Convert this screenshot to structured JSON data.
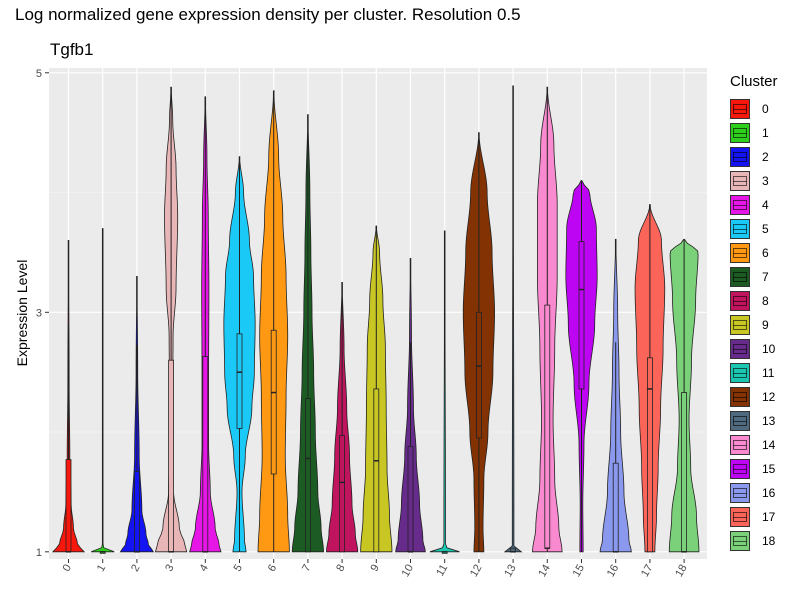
{
  "title": "Log normalized gene expression density per cluster. Resolution 0.5",
  "chart_data": {
    "type": "violin",
    "title": "Tgfb1",
    "xlabel": "",
    "ylabel": "Expression Level",
    "ylim": [
      0.94,
      5.04
    ],
    "yticks": [
      1,
      3,
      5
    ],
    "ytick_labels": [
      "1",
      "3",
      "5"
    ],
    "grid": true,
    "legend_title": "Cluster",
    "legend_position": "right",
    "categories": [
      "0",
      "1",
      "2",
      "3",
      "4",
      "5",
      "6",
      "7",
      "8",
      "9",
      "10",
      "11",
      "12",
      "13",
      "14",
      "15",
      "16",
      "17",
      "18"
    ],
    "colors": [
      "#F8170D",
      "#2DCF1C",
      "#1414F3",
      "#E8B6B7",
      "#E617E6",
      "#1BC9F7",
      "#FF9914",
      "#1C5C24",
      "#C1145E",
      "#C8C622",
      "#672B8C",
      "#1BC7B0",
      "#833303",
      "#4F6A7F",
      "#F98ACF",
      "#BE05F3",
      "#8A98EE",
      "#FB6559",
      "#7BD179"
    ],
    "series": [
      {
        "cluster": "0",
        "min": 1,
        "max": 3.6,
        "q1": 1,
        "median": 1,
        "q3": 1.77,
        "whisker_hi": 2.9,
        "profile": [
          [
            1,
            0.95
          ],
          [
            1.06,
            0.55
          ],
          [
            1.2,
            0.3
          ],
          [
            1.4,
            0.16
          ],
          [
            1.8,
            0.08
          ],
          [
            2.4,
            0.04
          ],
          [
            3.6,
            0.01
          ]
        ]
      },
      {
        "cluster": "1",
        "min": 1,
        "max": 3.7,
        "q1": 1,
        "median": 1,
        "q3": 1,
        "whisker_hi": 1,
        "profile": [
          [
            1,
            0.7
          ],
          [
            1.02,
            0.2
          ],
          [
            1.04,
            0.02
          ],
          [
            3.7,
            0.01
          ]
        ]
      },
      {
        "cluster": "2",
        "min": 1,
        "max": 3.3,
        "q1": 1,
        "median": 1,
        "q3": 1.67,
        "whisker_hi": 2.73,
        "profile": [
          [
            1,
            1
          ],
          [
            1.06,
            0.7
          ],
          [
            1.15,
            0.55
          ],
          [
            1.35,
            0.3
          ],
          [
            1.8,
            0.14
          ],
          [
            2.5,
            0.05
          ],
          [
            3.3,
            0.01
          ]
        ]
      },
      {
        "cluster": "3",
        "min": 1,
        "max": 4.88,
        "q1": 1,
        "median": 1,
        "q3": 2.6,
        "whisker_hi": 4.88,
        "profile": [
          [
            1,
            0.95
          ],
          [
            1.05,
            0.85
          ],
          [
            1.2,
            0.5
          ],
          [
            1.5,
            0.15
          ],
          [
            2.0,
            0.06
          ],
          [
            2.8,
            0.12
          ],
          [
            3.2,
            0.3
          ],
          [
            3.8,
            0.4
          ],
          [
            4.2,
            0.3
          ],
          [
            4.6,
            0.1
          ],
          [
            4.88,
            0.01
          ]
        ]
      },
      {
        "cluster": "4",
        "min": 1,
        "max": 4.8,
        "q1": 1,
        "median": 1,
        "q3": 2.63,
        "whisker_hi": 4.8,
        "profile": [
          [
            1,
            0.95
          ],
          [
            1.05,
            0.85
          ],
          [
            1.2,
            0.6
          ],
          [
            1.5,
            0.3
          ],
          [
            1.9,
            0.2
          ],
          [
            2.5,
            0.2
          ],
          [
            3.2,
            0.22
          ],
          [
            3.8,
            0.18
          ],
          [
            4.3,
            0.1
          ],
          [
            4.8,
            0.01
          ]
        ]
      },
      {
        "cluster": "5",
        "min": 1,
        "max": 4.3,
        "q1": 2.03,
        "median": 2.5,
        "q3": 2.82,
        "whisker_hi": 4.3,
        "profile": [
          [
            1,
            0.4
          ],
          [
            1.1,
            0.3
          ],
          [
            1.5,
            0.15
          ],
          [
            1.8,
            0.35
          ],
          [
            2.2,
            0.75
          ],
          [
            2.5,
            0.9
          ],
          [
            2.9,
            0.95
          ],
          [
            3.3,
            0.85
          ],
          [
            3.6,
            0.6
          ],
          [
            4.0,
            0.25
          ],
          [
            4.3,
            0.01
          ]
        ]
      },
      {
        "cluster": "6",
        "min": 1,
        "max": 4.85,
        "q1": 1.65,
        "median": 2.33,
        "q3": 2.85,
        "whisker_hi": 4.85,
        "profile": [
          [
            1,
            0.95
          ],
          [
            1.3,
            0.85
          ],
          [
            1.8,
            0.7
          ],
          [
            2.3,
            0.75
          ],
          [
            2.8,
            0.85
          ],
          [
            3.3,
            0.75
          ],
          [
            3.8,
            0.55
          ],
          [
            4.3,
            0.3
          ],
          [
            4.85,
            0.01
          ]
        ]
      },
      {
        "cluster": "7",
        "min": 1,
        "max": 4.65,
        "q1": 1,
        "median": 1.78,
        "q3": 2.28,
        "whisker_hi": 4.65,
        "profile": [
          [
            1,
            0.95
          ],
          [
            1.2,
            0.8
          ],
          [
            1.5,
            0.6
          ],
          [
            2.0,
            0.45
          ],
          [
            2.5,
            0.35
          ],
          [
            3.0,
            0.25
          ],
          [
            3.5,
            0.18
          ],
          [
            4.0,
            0.12
          ],
          [
            4.65,
            0.01
          ]
        ]
      },
      {
        "cluster": "8",
        "min": 1,
        "max": 3.25,
        "q1": 1,
        "median": 1.58,
        "q3": 1.97,
        "whisker_hi": 3.25,
        "profile": [
          [
            1,
            0.95
          ],
          [
            1.15,
            0.8
          ],
          [
            1.4,
            0.6
          ],
          [
            1.8,
            0.45
          ],
          [
            2.2,
            0.28
          ],
          [
            2.7,
            0.12
          ],
          [
            3.25,
            0.01
          ]
        ]
      },
      {
        "cluster": "9",
        "min": 1,
        "max": 3.72,
        "q1": 1,
        "median": 1.76,
        "q3": 2.36,
        "whisker_hi": 3.72,
        "profile": [
          [
            1,
            0.95
          ],
          [
            1.3,
            0.8
          ],
          [
            1.7,
            0.65
          ],
          [
            2.2,
            0.6
          ],
          [
            2.7,
            0.55
          ],
          [
            3.1,
            0.4
          ],
          [
            3.5,
            0.2
          ],
          [
            3.72,
            0.01
          ]
        ]
      },
      {
        "cluster": "10",
        "min": 1,
        "max": 3.45,
        "q1": 1,
        "median": 1,
        "q3": 1.88,
        "whisker_hi": 2.75,
        "profile": [
          [
            1,
            0.9
          ],
          [
            1.1,
            0.75
          ],
          [
            1.4,
            0.55
          ],
          [
            1.8,
            0.35
          ],
          [
            2.2,
            0.18
          ],
          [
            2.8,
            0.06
          ],
          [
            3.45,
            0.01
          ]
        ]
      },
      {
        "cluster": "11",
        "min": 1,
        "max": 3.68,
        "q1": 1,
        "median": 1,
        "q3": 1,
        "whisker_hi": 1,
        "profile": [
          [
            1,
            0.9
          ],
          [
            1.02,
            0.4
          ],
          [
            1.04,
            0.05
          ],
          [
            3.68,
            0.01
          ]
        ]
      },
      {
        "cluster": "12",
        "min": 1,
        "max": 4.5,
        "q1": 1.95,
        "median": 2.55,
        "q3": 3.0,
        "whisker_hi": 4.5,
        "profile": [
          [
            1,
            0.3
          ],
          [
            1.2,
            0.25
          ],
          [
            1.6,
            0.3
          ],
          [
            2.0,
            0.55
          ],
          [
            2.5,
            0.85
          ],
          [
            3.0,
            0.95
          ],
          [
            3.5,
            0.8
          ],
          [
            4.0,
            0.5
          ],
          [
            4.5,
            0.01
          ]
        ]
      },
      {
        "cluster": "13",
        "min": 1,
        "max": 4.89,
        "q1": 1,
        "median": 1,
        "q3": 1.03,
        "whisker_hi": 1.03,
        "profile": [
          [
            1,
            0.5
          ],
          [
            1.02,
            0.3
          ],
          [
            1.05,
            0.05
          ],
          [
            4.89,
            0.01
          ]
        ]
      },
      {
        "cluster": "14",
        "min": 1,
        "max": 4.88,
        "q1": 1.03,
        "median": 1.03,
        "q3": 3.06,
        "whisker_hi": 4.88,
        "profile": [
          [
            1,
            0.9
          ],
          [
            1.2,
            0.7
          ],
          [
            1.6,
            0.45
          ],
          [
            2.1,
            0.35
          ],
          [
            2.7,
            0.45
          ],
          [
            3.3,
            0.6
          ],
          [
            3.9,
            0.6
          ],
          [
            4.4,
            0.4
          ],
          [
            4.88,
            0.01
          ]
        ]
      },
      {
        "cluster": "15",
        "min": 1,
        "max": 4.1,
        "q1": 2.36,
        "median": 3.19,
        "q3": 3.59,
        "whisker_hi": 4.1,
        "profile": [
          [
            1,
            0.1
          ],
          [
            1.4,
            0.08
          ],
          [
            1.9,
            0.15
          ],
          [
            2.4,
            0.45
          ],
          [
            2.9,
            0.8
          ],
          [
            3.3,
            0.95
          ],
          [
            3.7,
            0.9
          ],
          [
            4.0,
            0.5
          ],
          [
            4.1,
            0.01
          ]
        ]
      },
      {
        "cluster": "16",
        "min": 1,
        "max": 3.61,
        "q1": 1,
        "median": 1,
        "q3": 1.74,
        "whisker_hi": 2.75,
        "profile": [
          [
            1,
            0.95
          ],
          [
            1.1,
            0.8
          ],
          [
            1.5,
            0.5
          ],
          [
            2.0,
            0.3
          ],
          [
            2.5,
            0.2
          ],
          [
            3.0,
            0.12
          ],
          [
            3.61,
            0.01
          ]
        ]
      },
      {
        "cluster": "17",
        "min": 1,
        "max": 3.9,
        "q1": 1,
        "median": 2.36,
        "q3": 2.62,
        "whisker_hi": 3.9,
        "profile": [
          [
            1,
            0.3
          ],
          [
            1.3,
            0.4
          ],
          [
            1.7,
            0.5
          ],
          [
            2.2,
            0.65
          ],
          [
            2.7,
            0.8
          ],
          [
            3.2,
            0.9
          ],
          [
            3.6,
            0.7
          ],
          [
            3.9,
            0.01
          ]
        ]
      },
      {
        "cluster": "18",
        "min": 1,
        "max": 3.61,
        "q1": 1,
        "median": 1,
        "q3": 2.33,
        "whisker_hi": 3.61,
        "profile": [
          [
            1,
            0.9
          ],
          [
            1.3,
            0.75
          ],
          [
            1.7,
            0.4
          ],
          [
            2.1,
            0.3
          ],
          [
            2.6,
            0.45
          ],
          [
            3.1,
            0.7
          ],
          [
            3.5,
            0.85
          ],
          [
            3.61,
            0.01
          ]
        ]
      }
    ]
  }
}
